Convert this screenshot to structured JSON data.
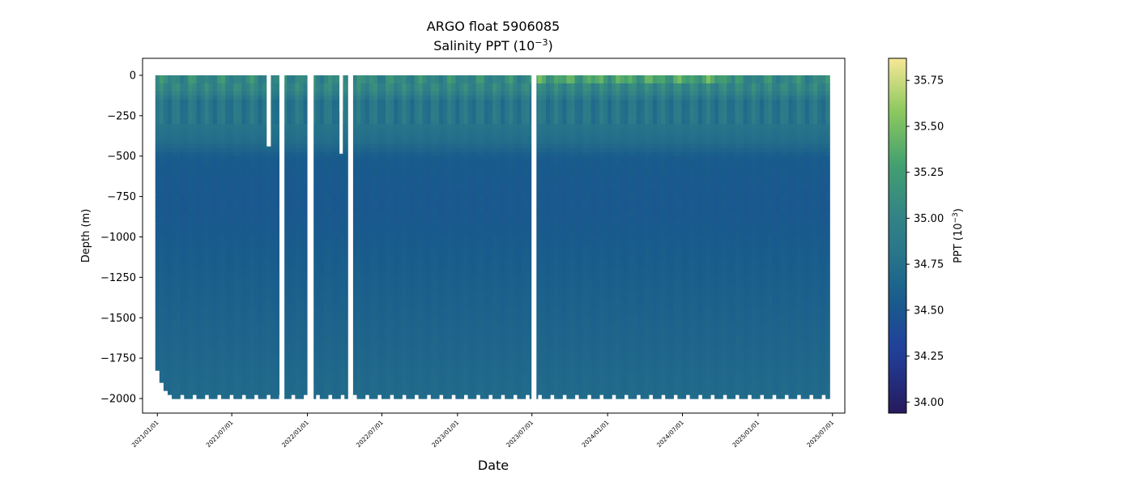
{
  "chart_data": {
    "type": "heatmap",
    "title": "ARGO float 5906085",
    "subtitle_prefix": "Salinity PPT (10",
    "subtitle_exp": "−3",
    "subtitle_suffix": ")",
    "xlabel": "Date",
    "ylabel": "Depth (m)",
    "xlim": [
      "2020-11-26",
      "2025-07-31"
    ],
    "ylim": [
      -2090,
      105
    ],
    "x_ticks": [
      {
        "date": "2021-01-01",
        "label": "2021/01/01"
      },
      {
        "date": "2021-07-01",
        "label": "2021/07/01"
      },
      {
        "date": "2022-01-01",
        "label": "2022/01/01"
      },
      {
        "date": "2022-07-01",
        "label": "2022/07/01"
      },
      {
        "date": "2023-01-01",
        "label": "2023/01/01"
      },
      {
        "date": "2023-07-01",
        "label": "2023/07/01"
      },
      {
        "date": "2024-01-01",
        "label": "2024/01/01"
      },
      {
        "date": "2024-07-01",
        "label": "2024/07/01"
      },
      {
        "date": "2025-01-01",
        "label": "2025/01/01"
      },
      {
        "date": "2025-07-01",
        "label": "2025/07/01"
      }
    ],
    "y_ticks": [
      {
        "value": 0,
        "label": "0"
      },
      {
        "value": -250,
        "label": "−250"
      },
      {
        "value": -500,
        "label": "−500"
      },
      {
        "value": -750,
        "label": "−750"
      },
      {
        "value": -1000,
        "label": "−1000"
      },
      {
        "value": -1250,
        "label": "−1250"
      },
      {
        "value": -1500,
        "label": "−1500"
      },
      {
        "value": -1750,
        "label": "−1750"
      },
      {
        "value": -2000,
        "label": "−2000"
      }
    ],
    "colorbar": {
      "label_prefix": "PPT (10",
      "label_exp": "−3",
      "label_suffix": ")",
      "range": [
        33.94,
        35.87
      ],
      "colormap": "haline",
      "ticks": [
        {
          "value": 34.0,
          "label": "34.00"
        },
        {
          "value": 34.25,
          "label": "34.25"
        },
        {
          "value": 34.5,
          "label": "34.50"
        },
        {
          "value": 34.75,
          "label": "34.75"
        },
        {
          "value": 35.0,
          "label": "35.00"
        },
        {
          "value": 35.25,
          "label": "35.25"
        },
        {
          "value": 35.5,
          "label": "35.50"
        },
        {
          "value": 35.75,
          "label": "35.75"
        }
      ]
    },
    "profiles": {
      "start_date": "2021-01-01",
      "end_date": "2025-06-20",
      "interval_days": 10,
      "max_depth": -1985
    },
    "gaps": [
      {
        "start": "2021-09-24",
        "end": "2021-10-04",
        "depth_to": -440
      },
      {
        "start": "2021-10-25",
        "end": "2021-11-06",
        "depth_to": 0
      },
      {
        "start": "2022-01-01",
        "end": "2022-01-16",
        "depth_to": 0
      },
      {
        "start": "2022-03-20",
        "end": "2022-03-28",
        "depth_to": -220
      },
      {
        "start": "2022-03-20",
        "end": "2022-03-28",
        "depth_to": -485
      },
      {
        "start": "2022-04-10",
        "end": "2022-04-22",
        "depth_to": 0
      },
      {
        "start": "2023-06-30",
        "end": "2023-07-12",
        "depth_to": 0
      },
      {
        "start": "2023-07-01",
        "end": "2023-07-06",
        "depth_to": -1240
      }
    ],
    "salinity_profile": [
      {
        "depth": 0,
        "value": 35.05
      },
      {
        "depth": -80,
        "value": 35.02
      },
      {
        "depth": -150,
        "value": 34.8
      },
      {
        "depth": -250,
        "value": 34.82
      },
      {
        "depth": -400,
        "value": 34.72
      },
      {
        "depth": -500,
        "value": 34.55
      },
      {
        "depth": -800,
        "value": 34.52
      },
      {
        "depth": -1200,
        "value": 34.58
      },
      {
        "depth": -1600,
        "value": 34.64
      },
      {
        "depth": -2000,
        "value": 34.7
      }
    ],
    "grid": false,
    "legend": "none"
  }
}
